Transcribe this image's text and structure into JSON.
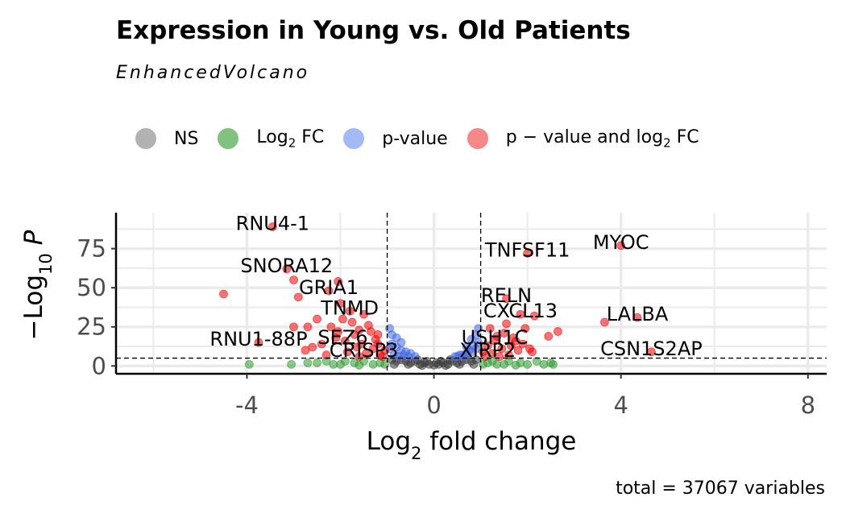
{
  "title": "Expression in Young vs. Old Patients",
  "subtitle": "EnhancedVolcano",
  "caption": "total = 37067 variables",
  "legend": [
    {
      "label": "NS",
      "sub": "",
      "tail": "",
      "color": "#7f7f7f"
    },
    {
      "label": "Log",
      "sub": "2",
      "tail": " FC",
      "color": "#2e9a2e"
    },
    {
      "label": "p-value",
      "sub": "",
      "tail": "",
      "color": "#6a8bef"
    },
    {
      "label": "p − value and log",
      "sub": "2",
      "tail": " FC",
      "color": "#f03b3b"
    }
  ],
  "chart_data": {
    "type": "scatter",
    "title": "Expression in Young vs. Old Patients",
    "subtitle": "EnhancedVolcano",
    "xlabel": "Log2 fold change",
    "ylabel": "−Log10 P",
    "xlim": [
      -6.8,
      8.4
    ],
    "ylim": [
      -5,
      98
    ],
    "xticks": [
      -4,
      0,
      4,
      8
    ],
    "xtick_labels": [
      "-4",
      "0",
      "4",
      "8"
    ],
    "yticks": [
      0,
      25,
      50,
      75
    ],
    "yticks_labels": [
      "0",
      "25",
      "50",
      "75"
    ],
    "grid": true,
    "legend_position": "top",
    "fc_cutoff": 1,
    "p_cutoff_line_y": 5,
    "colors": {
      "NS": "#3a3a3a",
      "FC": "#2e9a2e",
      "P": "#4169e1",
      "FC_P": "#f00000"
    },
    "points": {
      "FC_P": [
        [
          -3.45,
          89
        ],
        [
          -3.15,
          62
        ],
        [
          -3.0,
          55
        ],
        [
          -2.05,
          54
        ],
        [
          -2.25,
          48
        ],
        [
          -4.5,
          46
        ],
        [
          -2.9,
          44
        ],
        [
          -2.0,
          40
        ],
        [
          -1.8,
          35
        ],
        [
          -1.5,
          33
        ],
        [
          -2.5,
          30
        ],
        [
          -1.75,
          28
        ],
        [
          -3.0,
          25
        ],
        [
          -2.7,
          25
        ],
        [
          -2.2,
          25
        ],
        [
          -1.6,
          23
        ],
        [
          -1.35,
          22
        ],
        [
          -1.2,
          20
        ],
        [
          -2.1,
          18
        ],
        [
          -1.9,
          16
        ],
        [
          -3.75,
          15
        ],
        [
          -2.4,
          14
        ],
        [
          -1.65,
          12
        ],
        [
          -1.3,
          11
        ],
        [
          -2.75,
          10
        ],
        [
          -1.85,
          9
        ],
        [
          -1.45,
          8
        ],
        [
          -1.15,
          7
        ],
        [
          -2.3,
          7
        ],
        [
          -1.6,
          6
        ],
        [
          -1.1,
          6
        ],
        [
          -2.05,
          22
        ],
        [
          -1.7,
          20
        ],
        [
          -1.25,
          17
        ],
        [
          -1.55,
          14
        ],
        [
          -2.6,
          12
        ],
        [
          -1.4,
          26
        ],
        [
          -1.95,
          30
        ],
        [
          -1.05,
          10
        ],
        [
          -1.2,
          14
        ],
        [
          2.0,
          72
        ],
        [
          4.0,
          77
        ],
        [
          1.55,
          43
        ],
        [
          1.85,
          33
        ],
        [
          2.15,
          32
        ],
        [
          3.65,
          28
        ],
        [
          4.35,
          31
        ],
        [
          2.65,
          22
        ],
        [
          2.45,
          19
        ],
        [
          1.95,
          24
        ],
        [
          1.2,
          24
        ],
        [
          1.5,
          21
        ],
        [
          1.7,
          18
        ],
        [
          1.3,
          16
        ],
        [
          1.9,
          14
        ],
        [
          1.15,
          13
        ],
        [
          1.45,
          11
        ],
        [
          1.8,
          10
        ],
        [
          1.25,
          8
        ],
        [
          1.6,
          7
        ],
        [
          1.1,
          6
        ],
        [
          2.1,
          9
        ],
        [
          1.35,
          19
        ],
        [
          1.65,
          13
        ],
        [
          1.05,
          9
        ],
        [
          4.65,
          9
        ],
        [
          2.05,
          11
        ],
        [
          1.75,
          16
        ],
        [
          1.4,
          6
        ],
        [
          1.55,
          27
        ]
      ],
      "FC": [
        [
          -3.95,
          1
        ],
        [
          -3.05,
          1
        ],
        [
          -2.7,
          2
        ],
        [
          -2.3,
          3
        ],
        [
          -2.0,
          1
        ],
        [
          -1.7,
          2
        ],
        [
          -1.5,
          3
        ],
        [
          -1.3,
          1
        ],
        [
          -1.15,
          2
        ],
        [
          -2.5,
          2
        ],
        [
          -1.9,
          3
        ],
        [
          -1.05,
          1
        ],
        [
          -1.6,
          0.5
        ],
        [
          -2.15,
          1
        ],
        [
          1.15,
          2
        ],
        [
          1.35,
          1
        ],
        [
          1.6,
          3
        ],
        [
          1.85,
          2
        ],
        [
          2.0,
          1
        ],
        [
          2.2,
          3
        ],
        [
          2.5,
          2
        ],
        [
          1.25,
          3
        ],
        [
          1.5,
          1
        ],
        [
          1.75,
          0.5
        ],
        [
          2.35,
          1
        ],
        [
          2.55,
          1
        ],
        [
          1.05,
          1
        ]
      ],
      "P": [
        [
          -0.9,
          14
        ],
        [
          -0.8,
          12
        ],
        [
          -0.7,
          10
        ],
        [
          -0.6,
          9
        ],
        [
          -0.5,
          8
        ],
        [
          -0.85,
          7
        ],
        [
          -0.75,
          6
        ],
        [
          -0.95,
          11
        ],
        [
          -0.65,
          7
        ],
        [
          -0.55,
          6
        ],
        [
          -0.4,
          6
        ],
        [
          -0.9,
          20
        ],
        [
          -0.8,
          18
        ],
        [
          -0.95,
          24
        ],
        [
          -0.7,
          15
        ],
        [
          0.5,
          6
        ],
        [
          0.6,
          7
        ],
        [
          0.7,
          8
        ],
        [
          0.8,
          9
        ],
        [
          0.9,
          11
        ],
        [
          0.85,
          13
        ],
        [
          0.95,
          15
        ],
        [
          0.75,
          10
        ],
        [
          0.65,
          6
        ],
        [
          0.45,
          6
        ],
        [
          0.9,
          20
        ],
        [
          0.8,
          17
        ],
        [
          0.95,
          24
        ],
        [
          0.7,
          12
        ],
        [
          0.55,
          7
        ]
      ],
      "NS": [
        [
          -0.9,
          4
        ],
        [
          -0.8,
          3
        ],
        [
          -0.7,
          4
        ],
        [
          -0.6,
          3
        ],
        [
          -0.5,
          2
        ],
        [
          -0.4,
          3
        ],
        [
          -0.3,
          1
        ],
        [
          -0.2,
          2
        ],
        [
          -0.1,
          1
        ],
        [
          0.0,
          0.5
        ],
        [
          0.1,
          1
        ],
        [
          0.2,
          2
        ],
        [
          0.3,
          1
        ],
        [
          0.4,
          3
        ],
        [
          0.5,
          2
        ],
        [
          0.6,
          3
        ],
        [
          0.7,
          4
        ],
        [
          0.8,
          3
        ],
        [
          0.9,
          4
        ],
        [
          -0.35,
          4
        ],
        [
          0.35,
          4
        ],
        [
          -0.15,
          3
        ],
        [
          0.15,
          3
        ],
        [
          -0.55,
          1
        ],
        [
          0.55,
          1
        ],
        [
          -0.85,
          1
        ],
        [
          0.85,
          1
        ],
        [
          -0.25,
          0.3
        ],
        [
          0.25,
          0.3
        ],
        [
          0.05,
          2
        ]
      ]
    },
    "labels": [
      {
        "text": "RNU4-1",
        "x": -3.45,
        "y": 89
      },
      {
        "text": "SNORA12",
        "x": -3.15,
        "y": 62
      },
      {
        "text": "GRIA1",
        "x": -2.25,
        "y": 48
      },
      {
        "text": "TNMD",
        "x": -1.8,
        "y": 35
      },
      {
        "text": "RNU1-88P",
        "x": -3.75,
        "y": 15
      },
      {
        "text": "SEZ6",
        "x": -1.95,
        "y": 16
      },
      {
        "text": "CRISP3",
        "x": -1.5,
        "y": 8
      },
      {
        "text": "TNFSF11",
        "x": 2.0,
        "y": 72
      },
      {
        "text": "MYOC",
        "x": 4.0,
        "y": 77
      },
      {
        "text": "RELN",
        "x": 1.55,
        "y": 43
      },
      {
        "text": "CXCL13",
        "x": 1.85,
        "y": 33
      },
      {
        "text": "LALBA",
        "x": 4.35,
        "y": 31
      },
      {
        "text": "USH1C",
        "x": 1.3,
        "y": 16
      },
      {
        "text": "XIRP2",
        "x": 1.15,
        "y": 8
      },
      {
        "text": "CSN1S2AP",
        "x": 4.65,
        "y": 9
      }
    ]
  }
}
